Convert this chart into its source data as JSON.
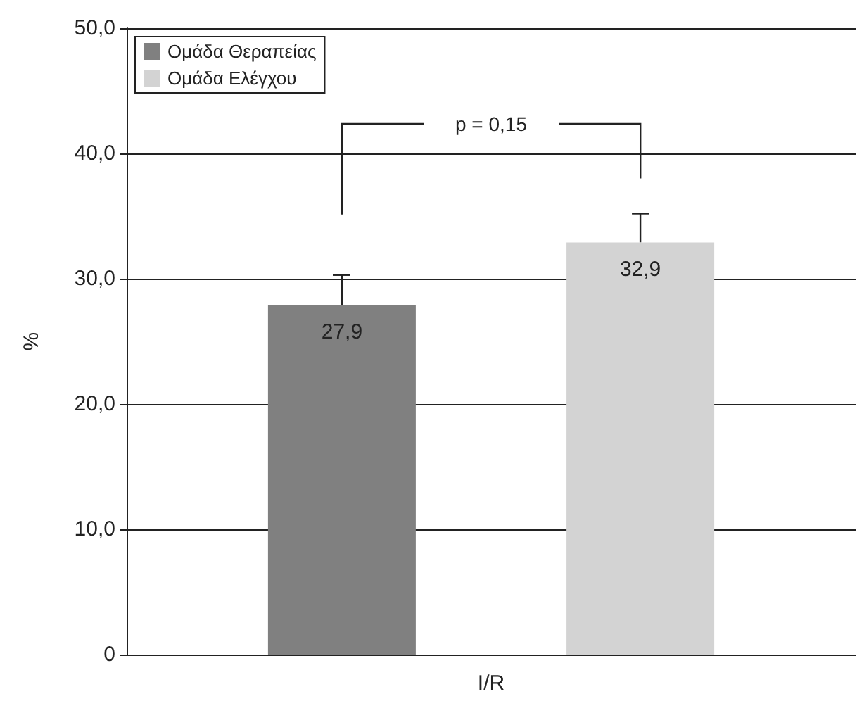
{
  "chart_data": {
    "type": "bar",
    "xlabel": "I/R",
    "ylabel": "%",
    "categories": [
      null
    ],
    "series": [
      {
        "name": "Ομάδα Θεραπείας",
        "color": "#808080",
        "values": [
          27.9
        ],
        "errors": [
          [
            27.9,
            30.3
          ]
        ],
        "value_labels": [
          "27,9"
        ]
      },
      {
        "name": "Ομάδα Ελέγχου",
        "color": "#d3d3d3",
        "values": [
          32.9
        ],
        "errors": [
          [
            32.9,
            35.2
          ]
        ],
        "value_labels": [
          "32,9"
        ]
      }
    ],
    "ylim": [
      0,
      50
    ],
    "yticks": [
      0,
      {
        "value": 10,
        "label": "10,0"
      },
      {
        "value": 20,
        "label": "20,0"
      },
      {
        "value": 30,
        "label": "30,0"
      },
      {
        "value": 40,
        "label": "40,0"
      },
      {
        "value": 50,
        "label": "50,0"
      }
    ],
    "grid": "y",
    "legend": "top left",
    "annotations": [
      "p = 0,15"
    ]
  }
}
